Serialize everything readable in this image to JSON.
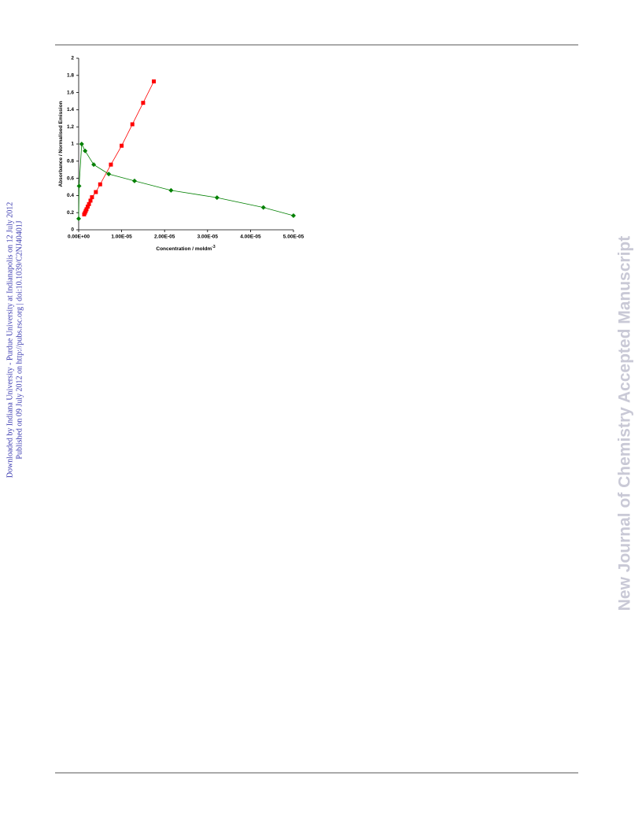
{
  "margin_note": {
    "line1": "Downloaded by Indiana University - Purdue University at Indianapolis on 12 July 2012",
    "line2": "Published on 09 July 2012 on http://pubs.rsc.org | doi:10.1039/C2NJ40401J"
  },
  "watermark": "New Journal of Chemistry Accepted Manuscript",
  "chart_data": {
    "type": "scatter",
    "y_label": "Absorbance / Normalised Emission",
    "x_label": {
      "text": "Concentration / moldm",
      "superscript": "-3"
    },
    "xlim": [
      0,
      5e-05
    ],
    "xticks": [
      {
        "value": 0,
        "label": "0.00E+00"
      },
      {
        "value": 1e-05,
        "label": "1.00E-05"
      },
      {
        "value": 2e-05,
        "label": "2.00E-05"
      },
      {
        "value": 3e-05,
        "label": "3.00E-05"
      },
      {
        "value": 4e-05,
        "label": "4.00E-05"
      },
      {
        "value": 5e-05,
        "label": "5.00E-05"
      }
    ],
    "ylim": [
      0,
      2
    ],
    "yticks": [
      0,
      0.2,
      0.4,
      0.6,
      0.8,
      1,
      1.2,
      1.4,
      1.6,
      1.8,
      2
    ],
    "series": [
      {
        "color": "#ff0000",
        "marker": "square",
        "x": [
          1.28e-06,
          1.47e-06,
          1.65e-06,
          1.83e-06,
          2.1e-06,
          2.4e-06,
          2.75e-06,
          3.1e-06,
          4e-06,
          5e-06,
          7.5e-06,
          1e-05,
          1.25e-05,
          1.5e-05,
          1.75e-05
        ],
        "values": [
          0.18,
          0.2,
          0.22,
          0.24,
          0.27,
          0.3,
          0.34,
          0.38,
          0.44,
          0.53,
          0.76,
          0.98,
          1.23,
          1.48,
          1.73
        ]
      },
      {
        "color": "#008000",
        "marker": "diamond",
        "x": [
          0,
          1e-07,
          7e-07,
          1.5e-06,
          3.5e-06,
          7e-06,
          1.3e-05,
          2.15e-05,
          3.22e-05,
          4.3e-05,
          5e-05
        ],
        "values": [
          0.13,
          0.51,
          1,
          0.92,
          0.76,
          0.65,
          0.57,
          0.46,
          0.375,
          0.26,
          0.165
        ]
      }
    ]
  }
}
